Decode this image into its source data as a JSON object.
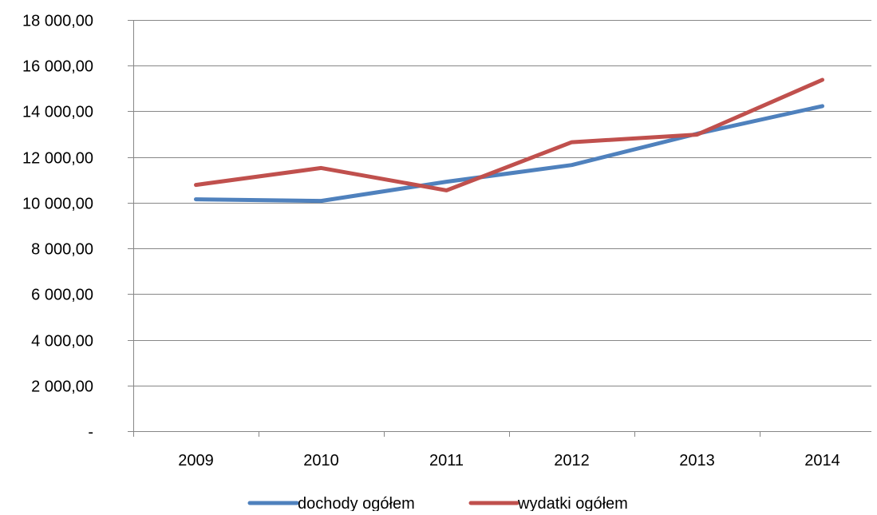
{
  "chart_data": {
    "type": "line",
    "categories": [
      "2009",
      "2010",
      "2011",
      "2012",
      "2013",
      "2014"
    ],
    "series": [
      {
        "name": "dochody ogółem",
        "color": "#4f81bd",
        "values": [
          10150,
          10080,
          10920,
          11650,
          13020,
          14230
        ]
      },
      {
        "name": "wydatki ogółem",
        "color": "#c0504d",
        "values": [
          10780,
          11520,
          10540,
          12650,
          12980,
          15380
        ]
      }
    ],
    "yticks": [
      {
        "value": 0,
        "label": "-"
      },
      {
        "value": 2000,
        "label": "2 000,00"
      },
      {
        "value": 4000,
        "label": "4 000,00"
      },
      {
        "value": 6000,
        "label": "6 000,00"
      },
      {
        "value": 8000,
        "label": "8 000,00"
      },
      {
        "value": 10000,
        "label": "10 000,00"
      },
      {
        "value": 12000,
        "label": "12 000,00"
      },
      {
        "value": 14000,
        "label": "14 000,00"
      },
      {
        "value": 16000,
        "label": "16 000,00"
      },
      {
        "value": 18000,
        "label": "18 000,00"
      }
    ],
    "ylim": [
      0,
      18000
    ],
    "grid": "horizontal",
    "legend_position": "bottom"
  }
}
